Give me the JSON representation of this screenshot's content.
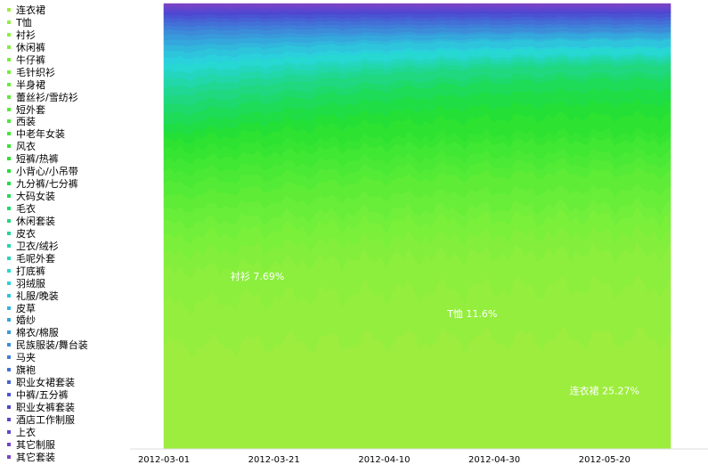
{
  "chart_data": {
    "type": "area",
    "stacked": "normalized",
    "ylim": [
      0,
      1
    ],
    "x_ticks": [
      "2012-03-01",
      "2012-03-21",
      "2012-04-10",
      "2012-04-30",
      "2012-05-20"
    ],
    "x_range": [
      "2012-03-01",
      "2012-06-01"
    ],
    "series": [
      {
        "name": "连衣裙",
        "color": "#9ded3e",
        "start": 0.24,
        "end": 0.2527
      },
      {
        "name": "T恤",
        "color": "#94ee3d",
        "start": 0.095,
        "end": 0.116
      },
      {
        "name": "衬衫",
        "color": "#8cef3d",
        "start": 0.077,
        "end": 0.0769
      },
      {
        "name": "休闲裤",
        "color": "#83ef3c",
        "start": 0.04,
        "end": 0.042
      },
      {
        "name": "牛仔裤",
        "color": "#7af03b",
        "start": 0.038,
        "end": 0.038
      },
      {
        "name": "毛针织衫",
        "color": "#71ef3a",
        "start": 0.033,
        "end": 0.025
      },
      {
        "name": "半身裙",
        "color": "#68ee39",
        "start": 0.032,
        "end": 0.036
      },
      {
        "name": "蕾丝衫/雪纺衫",
        "color": "#5eec37",
        "start": 0.03,
        "end": 0.038
      },
      {
        "name": "短外套",
        "color": "#54eb36",
        "start": 0.03,
        "end": 0.022
      },
      {
        "name": "西装",
        "color": "#4ae935",
        "start": 0.028,
        "end": 0.023
      },
      {
        "name": "中老年女装",
        "color": "#40e733",
        "start": 0.027,
        "end": 0.028
      },
      {
        "name": "风衣",
        "color": "#36e432",
        "start": 0.025,
        "end": 0.018
      },
      {
        "name": "短裤/热裤",
        "color": "#2de231",
        "start": 0.02,
        "end": 0.038
      },
      {
        "name": "小背心/小吊带",
        "color": "#24e036",
        "start": 0.018,
        "end": 0.028
      },
      {
        "name": "九分裤/七分裤",
        "color": "#1fdd45",
        "start": 0.02,
        "end": 0.03
      },
      {
        "name": "大码女装",
        "color": "#1edb58",
        "start": 0.023,
        "end": 0.025
      },
      {
        "name": "毛衣",
        "color": "#1ed96c",
        "start": 0.023,
        "end": 0.012
      },
      {
        "name": "休闲套装",
        "color": "#1fd880",
        "start": 0.021,
        "end": 0.02
      },
      {
        "name": "皮衣",
        "color": "#20d794",
        "start": 0.02,
        "end": 0.008
      },
      {
        "name": "卫衣/绒衫",
        "color": "#22d7a9",
        "start": 0.019,
        "end": 0.008
      },
      {
        "name": "毛呢外套",
        "color": "#24d6be",
        "start": 0.018,
        "end": 0.006
      },
      {
        "name": "打底裤",
        "color": "#27d7d2",
        "start": 0.017,
        "end": 0.015
      },
      {
        "name": "羽绒服",
        "color": "#2ad1dc",
        "start": 0.016,
        "end": 0.004
      },
      {
        "name": "礼服/晚装",
        "color": "#2dc4dc",
        "start": 0.015,
        "end": 0.015
      },
      {
        "name": "皮草",
        "color": "#31b6dc",
        "start": 0.014,
        "end": 0.004
      },
      {
        "name": "婚纱",
        "color": "#34a8dc",
        "start": 0.013,
        "end": 0.01
      },
      {
        "name": "棉衣/棉服",
        "color": "#389adb",
        "start": 0.012,
        "end": 0.004
      },
      {
        "name": "民族服装/舞台装",
        "color": "#3c8cda",
        "start": 0.011,
        "end": 0.01
      },
      {
        "name": "马夹",
        "color": "#3f7ed9",
        "start": 0.01,
        "end": 0.007
      },
      {
        "name": "旗袍",
        "color": "#4370d7",
        "start": 0.009,
        "end": 0.009
      },
      {
        "name": "职业女裙套装",
        "color": "#4662d5",
        "start": 0.0085,
        "end": 0.007
      },
      {
        "name": "中裤/五分裤",
        "color": "#4a54d3",
        "start": 0.008,
        "end": 0.008
      },
      {
        "name": "职业女裤套装",
        "color": "#4d47d1",
        "start": 0.007,
        "end": 0.005
      },
      {
        "name": "酒店工作制服",
        "color": "#5a47cf",
        "start": 0.006,
        "end": 0.005
      },
      {
        "name": "上衣",
        "color": "#6645cc",
        "start": 0.0055,
        "end": 0.005
      },
      {
        "name": "其它制服",
        "color": "#7144c9",
        "start": 0.0045,
        "end": 0.004
      },
      {
        "name": "其它套装",
        "color": "#7b42c5",
        "start": 0.004,
        "end": 0.0035
      }
    ],
    "annotations": [
      {
        "text": "衬衫 7.69%",
        "x": "2012-03-18"
      },
      {
        "text": "T恤 11.6%",
        "x": "2012-04-26"
      },
      {
        "text": "连衣裙 25.27%",
        "x": "2012-05-20"
      }
    ]
  }
}
